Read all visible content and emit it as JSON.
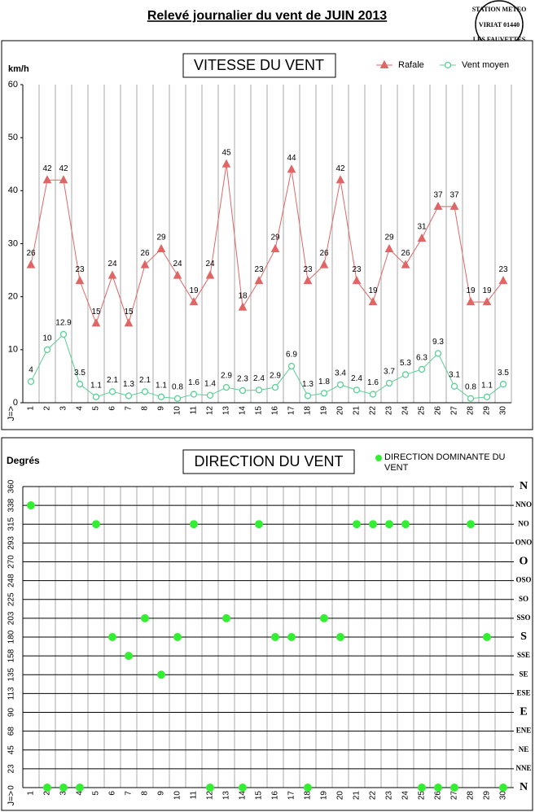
{
  "header": {
    "title": "Relevé journalier du vent de JUIN 2013",
    "stamp": [
      "STATION METEO",
      "VIRIAT 01440",
      "LES FAUVETTES"
    ]
  },
  "chart_data": [
    {
      "type": "line",
      "title": "VITESSE DU VENT",
      "y_label": "km/h",
      "x_label": "J=>",
      "categories": [
        "1",
        "2",
        "3",
        "4",
        "5",
        "6",
        "7",
        "8",
        "9",
        "10",
        "11",
        "12",
        "13",
        "14",
        "15",
        "16",
        "17",
        "18",
        "19",
        "20",
        "21",
        "22",
        "23",
        "24",
        "25",
        "26",
        "27",
        "28",
        "29",
        "30"
      ],
      "series": [
        {
          "name": "Rafale",
          "color": "#e06666",
          "marker": "triangle",
          "values": [
            26,
            42,
            42,
            23,
            15,
            24,
            15,
            26,
            29,
            24,
            19,
            24,
            45,
            18,
            23,
            29,
            44,
            23,
            26,
            42,
            23,
            19,
            29,
            26,
            31,
            37,
            37,
            19,
            19,
            23
          ]
        },
        {
          "name": "Vent moyen",
          "color": "#5ccf95",
          "marker": "circle",
          "values": [
            4,
            10,
            12.9,
            3.5,
            1.1,
            2.1,
            1.3,
            2.1,
            1.1,
            0.8,
            1.6,
            1.4,
            2.9,
            2.3,
            2.4,
            2.9,
            6.9,
            1.3,
            1.8,
            3.4,
            2.4,
            1.6,
            3.7,
            5.3,
            6.3,
            9.3,
            3.1,
            0.8,
            1.1,
            3.5
          ]
        }
      ],
      "ylim": [
        0,
        60
      ],
      "yticks": [
        0,
        10,
        20,
        30,
        40,
        50,
        60
      ],
      "legend": "top-right"
    },
    {
      "type": "scatter",
      "title": "DIRECTION DU VENT",
      "y_label": "Degrés",
      "x_label": "J=>",
      "categories": [
        "1",
        "2",
        "3",
        "4",
        "5",
        "6",
        "7",
        "8",
        "9",
        "10",
        "11",
        "12",
        "13",
        "14",
        "15",
        "16",
        "17",
        "18",
        "19",
        "20",
        "21",
        "22",
        "23",
        "24",
        "25",
        "26",
        "27",
        "28",
        "29",
        "30"
      ],
      "series": [
        {
          "name": "DIRECTION DOMINANTE DU VENT",
          "color": "#33ee33",
          "values": [
            337.5,
            0,
            0,
            0,
            315,
            180,
            157.5,
            202.5,
            135,
            180,
            315,
            0,
            202.5,
            0,
            315,
            180,
            180,
            0,
            202.5,
            180,
            315,
            315,
            315,
            315,
            0,
            0,
            0,
            315,
            180,
            0
          ]
        }
      ],
      "ylim": [
        0,
        360
      ],
      "yticks": [
        0,
        {
          "value": 22.5,
          "label": "23"
        },
        45,
        {
          "value": 67.5,
          "label": "68"
        },
        90,
        {
          "value": 112.5,
          "label": "113"
        },
        135,
        {
          "value": 157.5,
          "label": "158"
        },
        180,
        {
          "value": 202.5,
          "label": "203"
        },
        225,
        {
          "value": 247.5,
          "label": "248"
        },
        270,
        {
          "value": 292.5,
          "label": "293"
        },
        315,
        {
          "value": 337.5,
          "label": "338"
        },
        360
      ],
      "y2lim": [
        0,
        360
      ],
      "y2ticks": [
        {
          "value": 0,
          "label": "N"
        },
        {
          "value": 22.5,
          "label": "NNE"
        },
        {
          "value": 45,
          "label": "NE"
        },
        {
          "value": 67.5,
          "label": "ENE"
        },
        {
          "value": 90,
          "label": "E"
        },
        {
          "value": 112.5,
          "label": "ESE"
        },
        {
          "value": 135,
          "label": "SE"
        },
        {
          "value": 157.5,
          "label": "SSE"
        },
        {
          "value": 180,
          "label": "S"
        },
        {
          "value": 202.5,
          "label": "SSO"
        },
        {
          "value": 225,
          "label": "SO"
        },
        {
          "value": 247.5,
          "label": "OSO"
        },
        {
          "value": 270,
          "label": "O"
        },
        {
          "value": 292.5,
          "label": "ONO"
        },
        {
          "value": 315,
          "label": "NO"
        },
        {
          "value": 337.5,
          "label": "NNO"
        },
        {
          "value": 360,
          "label": "N"
        }
      ],
      "grid": true,
      "legend": "top-right"
    }
  ]
}
